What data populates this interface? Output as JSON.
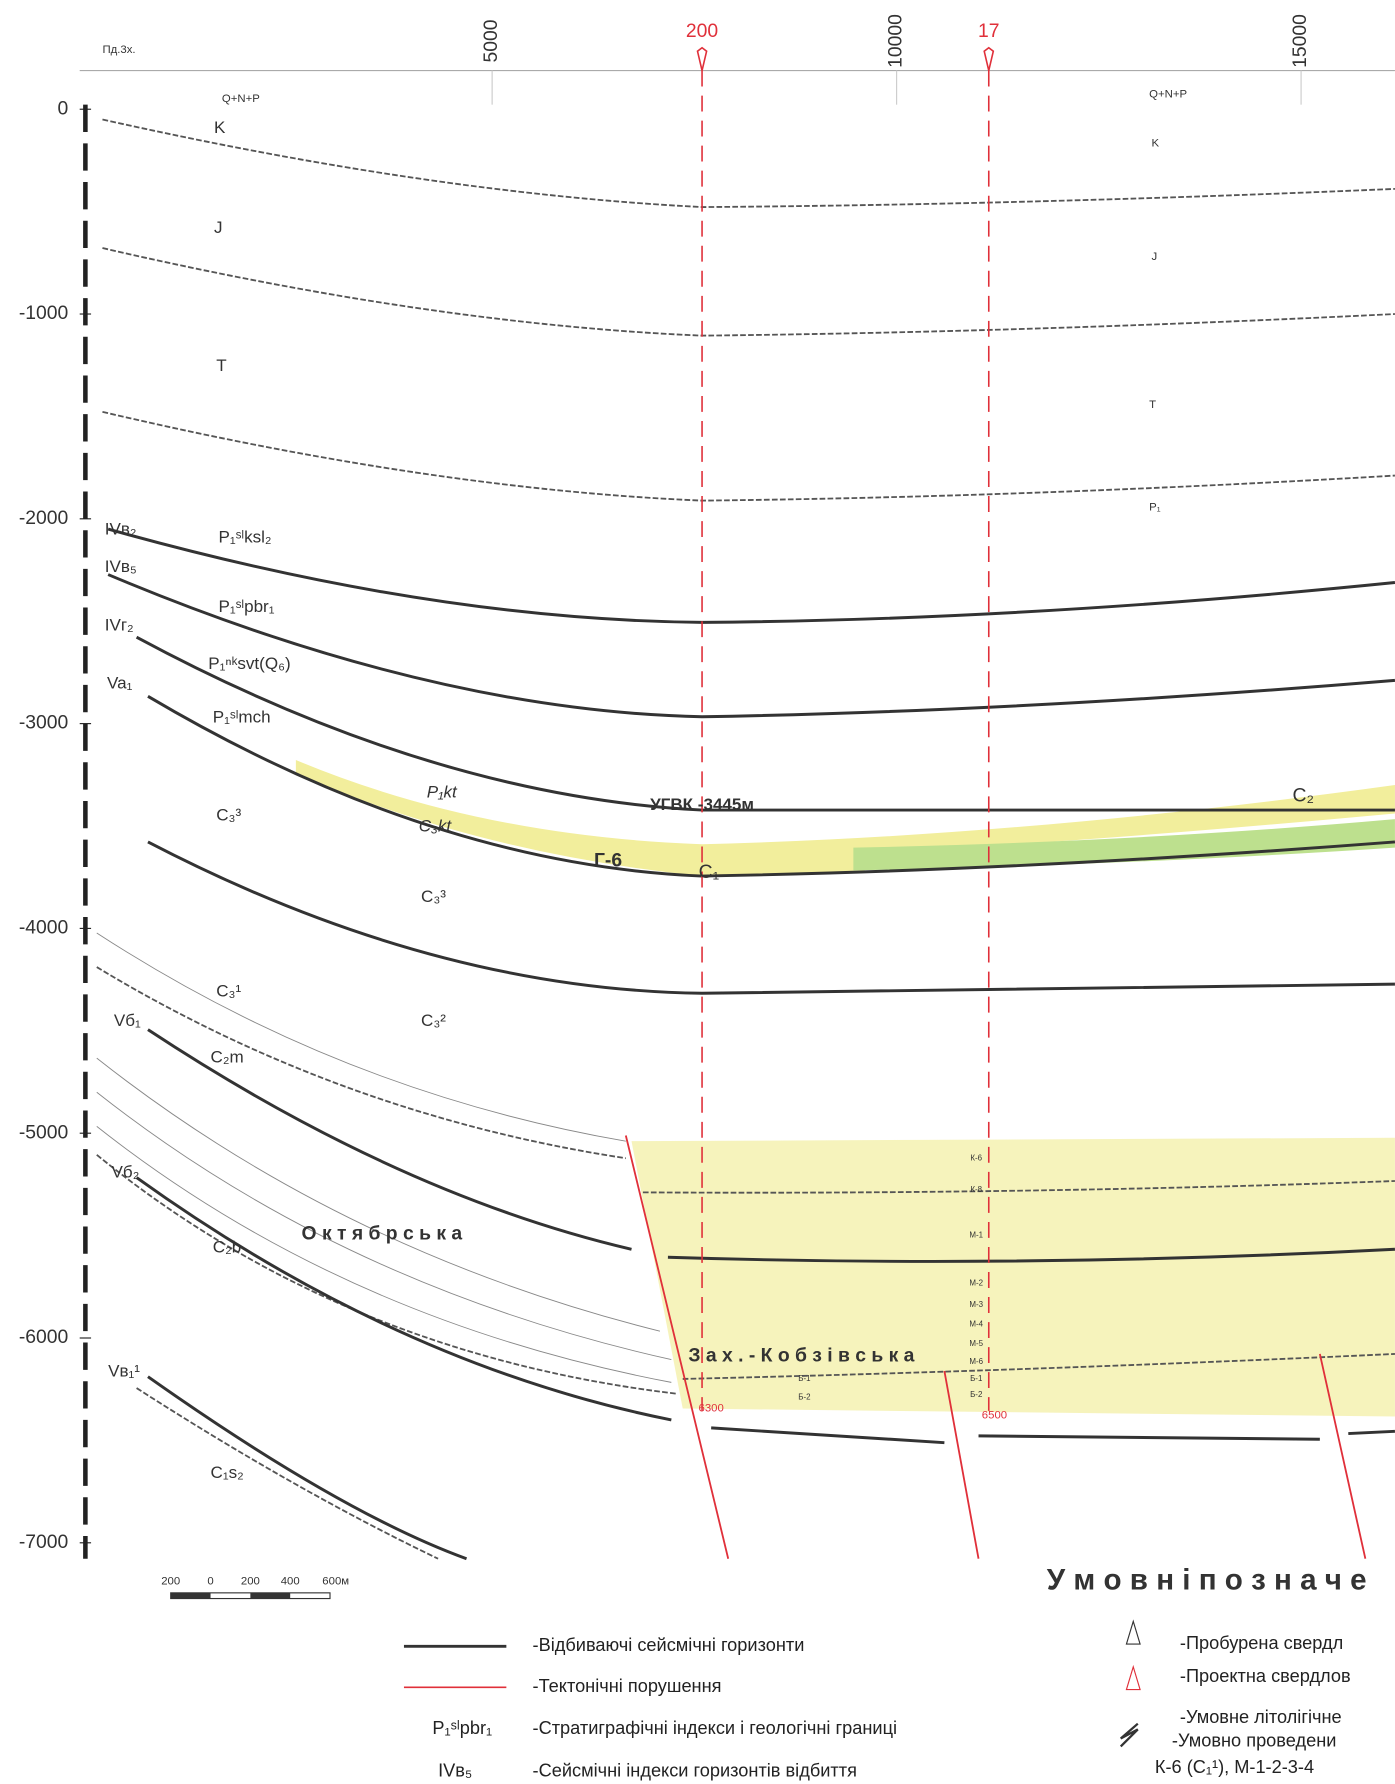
{
  "header": {
    "corner": "Пд.3х."
  },
  "depth_axis": {
    "ticks": [
      0,
      -1000,
      -2000,
      -3000,
      -4000,
      -5000,
      -6000,
      -7000
    ]
  },
  "distance_axis": {
    "ticks": [
      5000,
      10000,
      15000
    ]
  },
  "wells": [
    {
      "label": "200",
      "bottom": "6300"
    },
    {
      "label": "17",
      "bottom": "6500"
    }
  ],
  "section_labels": [
    "Q+N+P",
    "K",
    "J",
    "T",
    "IVв₂",
    "P₁ˢˡksl₂",
    "IVв₅",
    "P₁ˢˡpbr₁",
    "IVг₂",
    "P₁ⁿᵏsvt(Q₆)",
    "Va₁",
    "P₁ˢˡmch",
    "P₁kt",
    "C₃kt",
    "УГВК -3445м",
    "Г-6",
    "C₁",
    "C₂",
    "C₃³",
    "C₃³",
    "C₃¹",
    "C₃²",
    "Vб₁",
    "C₂m",
    "О к т я б р с ь к а",
    "Vб₂",
    "C₂b",
    "З а х . - К о б з і в с ь к а",
    "Vв₁¹",
    "C₁s₂",
    "Q+N+P",
    "K",
    "J",
    "T",
    "P₁"
  ],
  "layer_labels": [
    "К-6",
    "К-8",
    "М-1",
    "М-2",
    "М-3",
    "М-4",
    "М-5",
    "М-6",
    "Б-1",
    "Б-2",
    "Б-1",
    "Б-2"
  ],
  "scale_bar": [
    "200",
    "0",
    "200",
    "400",
    "600м"
  ],
  "legend": {
    "title": "У м о в н і   п о з н а ч е",
    "items": [
      "-Відбиваючі сейсмічні горизонти",
      "-Тектонічні порушення",
      "P₁ˢˡpbr₁",
      "-Стратиграфічні індекси і геологічні границі",
      "IVв₅",
      "-Сейсмічні індекси горизонтів відбиття",
      "-Пробурена свердл",
      "-Проектна свердлов",
      "-Умовне літолігічне",
      "-Умовно проведени",
      "К-6 (С₁¹), М-1-2-3-4"
    ]
  }
}
